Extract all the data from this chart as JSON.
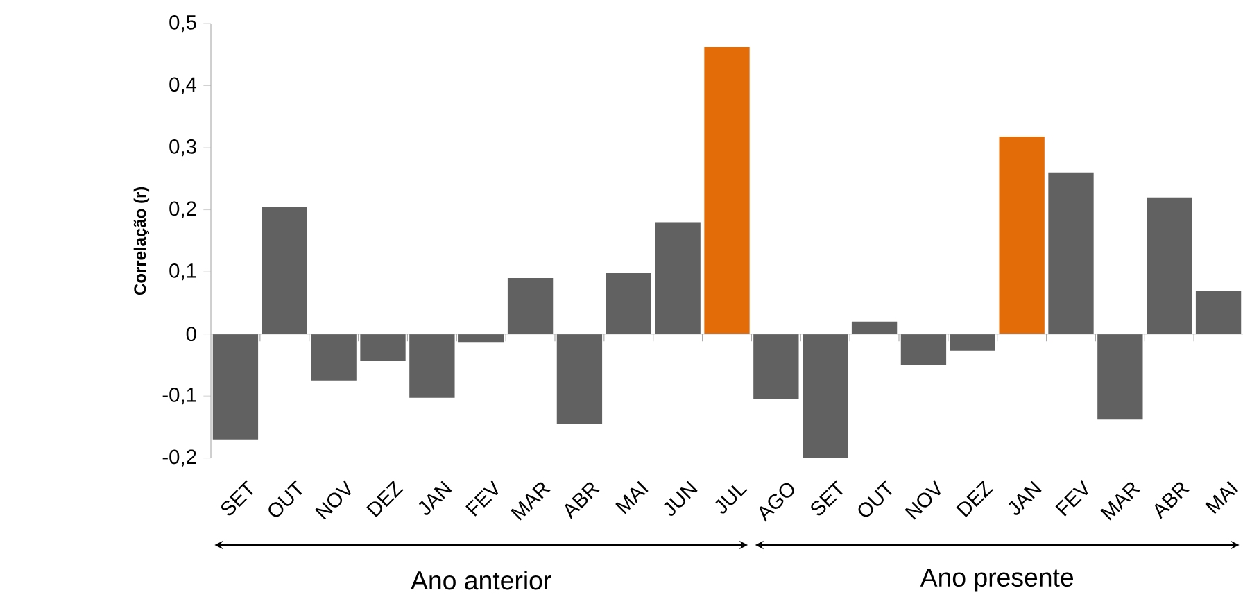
{
  "chart_data": {
    "type": "bar",
    "ylabel": "Correlação (r)",
    "categories": [
      "SET",
      "OUT",
      "NOV",
      "DEZ",
      "JAN",
      "FEV",
      "MAR",
      "ABR",
      "MAI",
      "JUN",
      "JUL",
      "AGO",
      "SET",
      "OUT",
      "NOV",
      "DEZ",
      "JAN",
      "FEV",
      "MAR",
      "ABR",
      "MAI"
    ],
    "values": [
      -0.17,
      0.205,
      -0.075,
      -0.043,
      -0.103,
      -0.013,
      0.09,
      -0.145,
      0.098,
      0.18,
      0.462,
      -0.105,
      -0.2,
      0.02,
      -0.05,
      -0.027,
      0.318,
      0.26,
      -0.138,
      0.22,
      0.07
    ],
    "colors": [
      "#616161",
      "#616161",
      "#616161",
      "#616161",
      "#616161",
      "#616161",
      "#616161",
      "#616161",
      "#616161",
      "#616161",
      "#e36c09",
      "#616161",
      "#616161",
      "#616161",
      "#616161",
      "#616161",
      "#e36c09",
      "#616161",
      "#616161",
      "#616161",
      "#616161"
    ],
    "ylim": [
      -0.2,
      0.5
    ],
    "yticks": [
      {
        "value": -0.2,
        "label": "-0,2"
      },
      {
        "value": -0.1,
        "label": "-0,1"
      },
      {
        "value": 0,
        "label": "0"
      },
      {
        "value": 0.1,
        "label": "0,1"
      },
      {
        "value": 0.2,
        "label": "0,2"
      },
      {
        "value": 0.3,
        "label": "0,3"
      },
      {
        "value": 0.4,
        "label": "0,4"
      },
      {
        "value": 0.5,
        "label": "0,5"
      }
    ],
    "annotations": [
      "Ano anterior",
      "Ano presente"
    ]
  }
}
